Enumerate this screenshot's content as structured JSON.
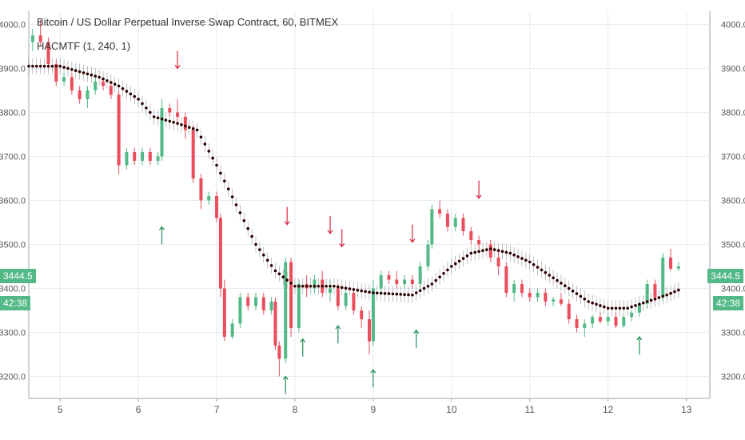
{
  "legend": {
    "title": "Bitcoin / US Dollar Perpetual Inverse Swap Contract, 60, BITMEX",
    "indicator": "HACMTF (1, 240, 1)"
  },
  "price_tag": "3444.5",
  "countdown_tag": "42:38",
  "colors": {
    "up": "#53b987",
    "down": "#eb4d5c",
    "grid": "#e6ecf2",
    "axis_text": "#555555",
    "indicator": "#2b0000",
    "whisker": "#444444",
    "arrow_up": "#1e8f55",
    "arrow_down": "#d7263d"
  },
  "chart_data": {
    "type": "candlestick",
    "x_ticks": [
      "5",
      "6",
      "7",
      "8",
      "9",
      "10",
      "11",
      "12",
      "13"
    ],
    "y_ticks": [
      "4000.0",
      "3900.0",
      "3800.0",
      "3700.0",
      "3600.0",
      "3500.0",
      "3400.0",
      "3300.0",
      "3200.0"
    ],
    "ylim": [
      3150,
      4030
    ],
    "xlim": [
      4.6,
      13.3
    ],
    "grid": true,
    "candles": [
      [
        4.65,
        3960,
        3990,
        3940,
        3975
      ],
      [
        4.75,
        3975,
        4010,
        3950,
        3960
      ],
      [
        4.85,
        3960,
        3970,
        3900,
        3910
      ],
      [
        4.95,
        3910,
        3920,
        3860,
        3870
      ],
      [
        5.05,
        3870,
        3890,
        3860,
        3880
      ],
      [
        5.15,
        3880,
        3890,
        3840,
        3850
      ],
      [
        5.25,
        3850,
        3860,
        3820,
        3830
      ],
      [
        5.35,
        3830,
        3860,
        3810,
        3850
      ],
      [
        5.45,
        3850,
        3880,
        3840,
        3870
      ],
      [
        5.55,
        3870,
        3880,
        3850,
        3860
      ],
      [
        5.65,
        3860,
        3870,
        3830,
        3840
      ],
      [
        5.75,
        3840,
        3850,
        3660,
        3680
      ],
      [
        5.85,
        3680,
        3720,
        3670,
        3710
      ],
      [
        5.95,
        3710,
        3720,
        3680,
        3690
      ],
      [
        6.05,
        3690,
        3720,
        3680,
        3710
      ],
      [
        6.15,
        3710,
        3720,
        3680,
        3690
      ],
      [
        6.25,
        3690,
        3710,
        3680,
        3700
      ],
      [
        6.3,
        3700,
        3830,
        3690,
        3810
      ],
      [
        6.4,
        3810,
        3820,
        3790,
        3800
      ],
      [
        6.5,
        3800,
        3830,
        3770,
        3790
      ],
      [
        6.6,
        3790,
        3800,
        3740,
        3760
      ],
      [
        6.7,
        3760,
        3770,
        3640,
        3650
      ],
      [
        6.8,
        3650,
        3660,
        3580,
        3600
      ],
      [
        6.9,
        3600,
        3620,
        3590,
        3610
      ],
      [
        7.0,
        3610,
        3620,
        3550,
        3560
      ],
      [
        7.05,
        3560,
        3570,
        3380,
        3400
      ],
      [
        7.1,
        3400,
        3420,
        3280,
        3290
      ],
      [
        7.2,
        3290,
        3330,
        3285,
        3320
      ],
      [
        7.3,
        3320,
        3390,
        3310,
        3380
      ],
      [
        7.4,
        3380,
        3390,
        3350,
        3360
      ],
      [
        7.5,
        3360,
        3390,
        3350,
        3380
      ],
      [
        7.6,
        3380,
        3390,
        3340,
        3350
      ],
      [
        7.7,
        3350,
        3380,
        3340,
        3370
      ],
      [
        7.75,
        3370,
        3380,
        3260,
        3270
      ],
      [
        7.8,
        3270,
        3280,
        3200,
        3240
      ],
      [
        7.88,
        3240,
        3470,
        3230,
        3460
      ],
      [
        7.95,
        3460,
        3470,
        3290,
        3310
      ],
      [
        8.05,
        3310,
        3420,
        3300,
        3410
      ],
      [
        8.15,
        3410,
        3430,
        3380,
        3400
      ],
      [
        8.25,
        3400,
        3430,
        3390,
        3420
      ],
      [
        8.35,
        3420,
        3440,
        3380,
        3390
      ],
      [
        8.45,
        3390,
        3420,
        3370,
        3400
      ],
      [
        8.55,
        3400,
        3410,
        3350,
        3360
      ],
      [
        8.65,
        3360,
        3400,
        3350,
        3390
      ],
      [
        8.75,
        3390,
        3400,
        3340,
        3350
      ],
      [
        8.85,
        3350,
        3360,
        3310,
        3330
      ],
      [
        8.95,
        3330,
        3350,
        3250,
        3280
      ],
      [
        9.0,
        3280,
        3420,
        3270,
        3400
      ],
      [
        9.1,
        3400,
        3440,
        3390,
        3430
      ],
      [
        9.2,
        3430,
        3440,
        3410,
        3420
      ],
      [
        9.3,
        3420,
        3440,
        3400,
        3410
      ],
      [
        9.4,
        3410,
        3430,
        3400,
        3420
      ],
      [
        9.5,
        3420,
        3430,
        3400,
        3410
      ],
      [
        9.6,
        3410,
        3460,
        3400,
        3450
      ],
      [
        9.7,
        3450,
        3510,
        3440,
        3500
      ],
      [
        9.75,
        3500,
        3590,
        3490,
        3580
      ],
      [
        9.85,
        3580,
        3600,
        3560,
        3570
      ],
      [
        9.95,
        3570,
        3580,
        3530,
        3540
      ],
      [
        10.05,
        3540,
        3570,
        3530,
        3560
      ],
      [
        10.15,
        3560,
        3570,
        3520,
        3530
      ],
      [
        10.25,
        3530,
        3540,
        3500,
        3510
      ],
      [
        10.35,
        3510,
        3520,
        3490,
        3500
      ],
      [
        10.5,
        3500,
        3510,
        3460,
        3470
      ],
      [
        10.6,
        3470,
        3490,
        3430,
        3450
      ],
      [
        10.7,
        3450,
        3460,
        3380,
        3390
      ],
      [
        10.8,
        3390,
        3420,
        3370,
        3410
      ],
      [
        10.9,
        3410,
        3420,
        3380,
        3390
      ],
      [
        11.0,
        3390,
        3400,
        3370,
        3380
      ],
      [
        11.1,
        3380,
        3400,
        3370,
        3390
      ],
      [
        11.2,
        3390,
        3400,
        3360,
        3370
      ],
      [
        11.3,
        3370,
        3380,
        3360,
        3375
      ],
      [
        11.4,
        3375,
        3390,
        3360,
        3365
      ],
      [
        11.5,
        3365,
        3375,
        3320,
        3330
      ],
      [
        11.6,
        3330,
        3340,
        3300,
        3310
      ],
      [
        11.7,
        3310,
        3330,
        3290,
        3320
      ],
      [
        11.8,
        3320,
        3340,
        3310,
        3335
      ],
      [
        11.9,
        3335,
        3345,
        3320,
        3325
      ],
      [
        12.0,
        3325,
        3340,
        3315,
        3335
      ],
      [
        12.1,
        3335,
        3345,
        3310,
        3315
      ],
      [
        12.2,
        3315,
        3340,
        3310,
        3335
      ],
      [
        12.3,
        3335,
        3350,
        3325,
        3345
      ],
      [
        12.4,
        3345,
        3370,
        3335,
        3365
      ],
      [
        12.5,
        3365,
        3420,
        3355,
        3410
      ],
      [
        12.6,
        3410,
        3420,
        3370,
        3380
      ],
      [
        12.7,
        3380,
        3480,
        3370,
        3470
      ],
      [
        12.8,
        3470,
        3490,
        3440,
        3445
      ],
      [
        12.9,
        3445,
        3460,
        3440,
        3450
      ]
    ],
    "indicator_line": [
      [
        4.6,
        3905
      ],
      [
        5.0,
        3905
      ],
      [
        5.5,
        3880
      ],
      [
        5.75,
        3860
      ],
      [
        6.0,
        3830
      ],
      [
        6.2,
        3790
      ],
      [
        6.5,
        3775
      ],
      [
        6.75,
        3760
      ],
      [
        7.0,
        3680
      ],
      [
        7.25,
        3590
      ],
      [
        7.5,
        3500
      ],
      [
        7.75,
        3440
      ],
      [
        8.0,
        3405
      ],
      [
        8.5,
        3405
      ],
      [
        9.0,
        3390
      ],
      [
        9.5,
        3385
      ],
      [
        9.75,
        3410
      ],
      [
        10.0,
        3450
      ],
      [
        10.25,
        3480
      ],
      [
        10.5,
        3490
      ],
      [
        10.75,
        3480
      ],
      [
        11.0,
        3460
      ],
      [
        11.25,
        3430
      ],
      [
        11.5,
        3400
      ],
      [
        11.75,
        3370
      ],
      [
        12.0,
        3355
      ],
      [
        12.25,
        3355
      ],
      [
        12.5,
        3370
      ],
      [
        12.75,
        3385
      ],
      [
        12.95,
        3400
      ]
    ],
    "up_arrows": [
      [
        6.3,
        3540
      ],
      [
        7.88,
        3200
      ],
      [
        8.1,
        3285
      ],
      [
        8.55,
        3315
      ],
      [
        9.0,
        3215
      ],
      [
        9.55,
        3305
      ],
      [
        12.4,
        3290
      ]
    ],
    "down_arrows": [
      [
        6.5,
        3900
      ],
      [
        7.9,
        3545
      ],
      [
        8.45,
        3525
      ],
      [
        8.6,
        3495
      ],
      [
        9.5,
        3505
      ],
      [
        10.35,
        3605
      ]
    ]
  }
}
